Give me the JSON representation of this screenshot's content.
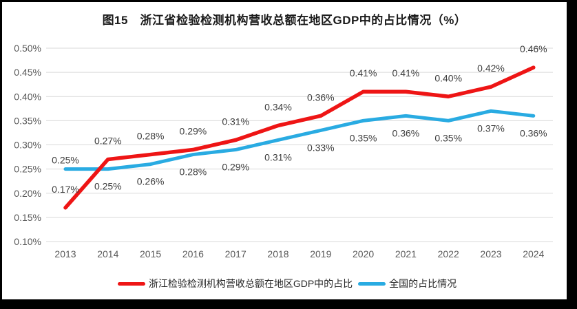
{
  "title": "图15　浙江省检验检测机构营收总额在地区GDP中的占比情况（%）",
  "colors": {
    "grid": "#d9d9d9",
    "axis_text": "#595959",
    "data_label_text": "#3d3d3d",
    "frame": "#000000",
    "background": "#ffffff",
    "series_red": "#ee1515",
    "series_blue": "#29abe2"
  },
  "chart_data": {
    "type": "line",
    "title": "图15　浙江省检验检测机构营收总额在地区GDP中的占比情况（%）",
    "xlabel": "",
    "ylabel": "",
    "categories": [
      "2013",
      "2014",
      "2015",
      "2016",
      "2017",
      "2018",
      "2019",
      "2020",
      "2021",
      "2022",
      "2023",
      "2024"
    ],
    "y_ticks": [
      "0.50%",
      "0.45%",
      "0.40%",
      "0.35%",
      "0.30%",
      "0.25%",
      "0.20%",
      "0.15%",
      "0.10%"
    ],
    "ylim": [
      0.1,
      0.5
    ],
    "y_step": 0.05,
    "grid": true,
    "legend_position": "bottom",
    "series": [
      {
        "name": "浙江检验检测机构营收总额在地区GDP中的占比",
        "color": "#ee1515",
        "values": [
          0.17,
          0.27,
          0.28,
          0.29,
          0.31,
          0.34,
          0.36,
          0.41,
          0.41,
          0.4,
          0.42,
          0.46
        ],
        "labels": [
          "0.17%",
          "0.27%",
          "0.28%",
          "0.29%",
          "0.31%",
          "0.34%",
          "0.36%",
          "0.41%",
          "0.41%",
          "0.40%",
          "0.42%",
          "0.46%"
        ],
        "label_positions": [
          "above",
          "above",
          "above",
          "above",
          "above",
          "above",
          "above",
          "above",
          "above",
          "above",
          "above",
          "above"
        ]
      },
      {
        "name": "全国的占比情况",
        "color": "#29abe2",
        "values": [
          0.25,
          0.25,
          0.26,
          0.28,
          0.29,
          0.31,
          0.33,
          0.35,
          0.36,
          0.35,
          0.37,
          0.36
        ],
        "labels": [
          "0.25%",
          "0.25%",
          "0.26%",
          "0.28%",
          "0.29%",
          "0.31%",
          "0.33%",
          "0.35%",
          "0.36%",
          "0.35%",
          "0.37%",
          "0.36%"
        ],
        "label_positions": [
          "above-tight",
          "below",
          "below",
          "below",
          "below",
          "below",
          "below",
          "below",
          "below",
          "below",
          "below",
          "below"
        ]
      }
    ]
  }
}
